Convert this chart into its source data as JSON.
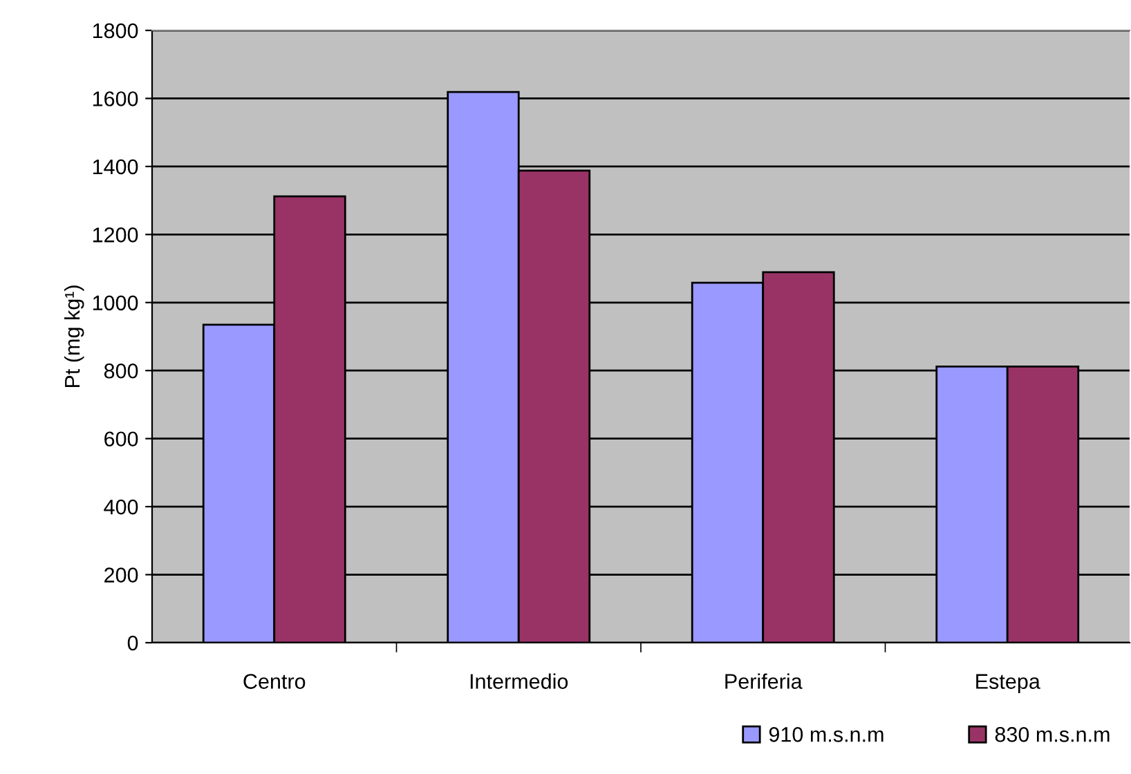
{
  "chart_data": {
    "type": "bar",
    "ylabel": "Pt (mg kg¹)",
    "categories": [
      "Centro",
      "Intermedio",
      "Periferia",
      "Estepa"
    ],
    "series": [
      {
        "name": "910 m.s.n.m",
        "color": "#9999ff",
        "values": [
          935,
          1619,
          1058,
          812
        ]
      },
      {
        "name": "830 m.s.n.m",
        "color": "#993366",
        "values": [
          1312,
          1388,
          1089,
          812
        ]
      }
    ],
    "ylim": [
      0,
      1800
    ],
    "yticks": [
      0,
      200,
      400,
      600,
      800,
      1000,
      1200,
      1400,
      1600,
      1800
    ],
    "grid": "y",
    "legend": "bottom right"
  }
}
